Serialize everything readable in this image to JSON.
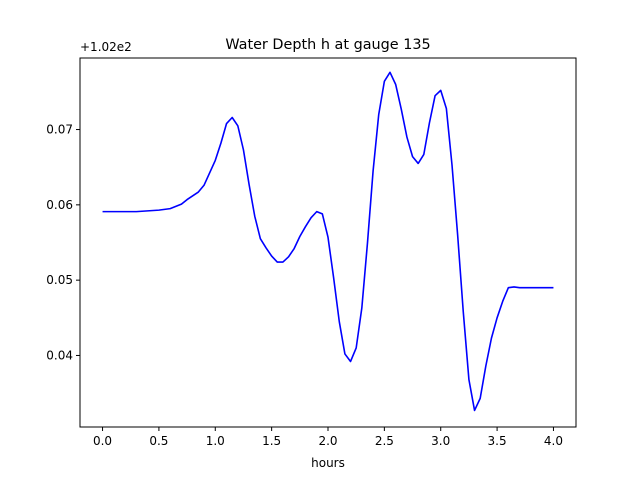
{
  "chart_data": {
    "type": "line",
    "title": "Water Depth h at gauge 135",
    "xlabel": "hours",
    "ylabel": "",
    "y_offset_label": "+1.02e2",
    "xlim": [
      -0.2,
      4.2
    ],
    "ylim": [
      0.0305,
      0.0795
    ],
    "x_ticks": [
      0.0,
      0.5,
      1.0,
      1.5,
      2.0,
      2.5,
      3.0,
      3.5,
      4.0
    ],
    "x_tick_labels": [
      "0.0",
      "0.5",
      "1.0",
      "1.5",
      "2.0",
      "2.5",
      "3.0",
      "3.5",
      "4.0"
    ],
    "y_ticks": [
      0.04,
      0.05,
      0.06,
      0.07
    ],
    "y_tick_labels": [
      "0.04",
      "0.05",
      "0.06",
      "0.07"
    ],
    "grid": false,
    "line_color": "#0000ff",
    "series": [
      {
        "x": [
          0.0,
          0.1,
          0.2,
          0.3,
          0.4,
          0.5,
          0.6,
          0.7,
          0.75,
          0.85,
          0.9,
          1.0,
          1.05,
          1.1,
          1.15,
          1.2,
          1.25,
          1.3,
          1.35,
          1.4,
          1.45,
          1.5,
          1.55,
          1.6,
          1.65,
          1.7,
          1.75,
          1.8,
          1.85,
          1.9,
          1.95,
          2.0,
          2.05,
          2.1,
          2.15,
          2.2,
          2.25,
          2.3,
          2.35,
          2.4,
          2.45,
          2.5,
          2.55,
          2.6,
          2.65,
          2.7,
          2.75,
          2.8,
          2.85,
          2.9,
          2.95,
          3.0,
          3.05,
          3.1,
          3.15,
          3.2,
          3.25,
          3.3,
          3.35,
          3.4,
          3.45,
          3.5,
          3.55,
          3.6,
          3.65,
          3.7,
          3.75,
          3.8,
          3.85,
          3.9,
          3.95,
          4.0
        ],
        "y": [
          0.0591,
          0.0591,
          0.0591,
          0.0591,
          0.0592,
          0.0593,
          0.0595,
          0.0601,
          0.0607,
          0.0617,
          0.0626,
          0.0659,
          0.0682,
          0.0708,
          0.0716,
          0.0705,
          0.0673,
          0.0627,
          0.0585,
          0.0555,
          0.0543,
          0.0532,
          0.0524,
          0.0524,
          0.0531,
          0.0542,
          0.0558,
          0.0571,
          0.0583,
          0.0591,
          0.0588,
          0.0557,
          0.0503,
          0.0445,
          0.0402,
          0.0392,
          0.041,
          0.0463,
          0.0549,
          0.0645,
          0.072,
          0.0764,
          0.0776,
          0.076,
          0.0727,
          0.069,
          0.0664,
          0.0655,
          0.0667,
          0.0709,
          0.0745,
          0.0752,
          0.0728,
          0.0653,
          0.056,
          0.0458,
          0.0368,
          0.0327,
          0.0343,
          0.0386,
          0.0423,
          0.045,
          0.0472,
          0.049,
          0.0491,
          0.049,
          0.049,
          0.049,
          0.049,
          0.049,
          0.049,
          0.049
        ]
      }
    ]
  }
}
